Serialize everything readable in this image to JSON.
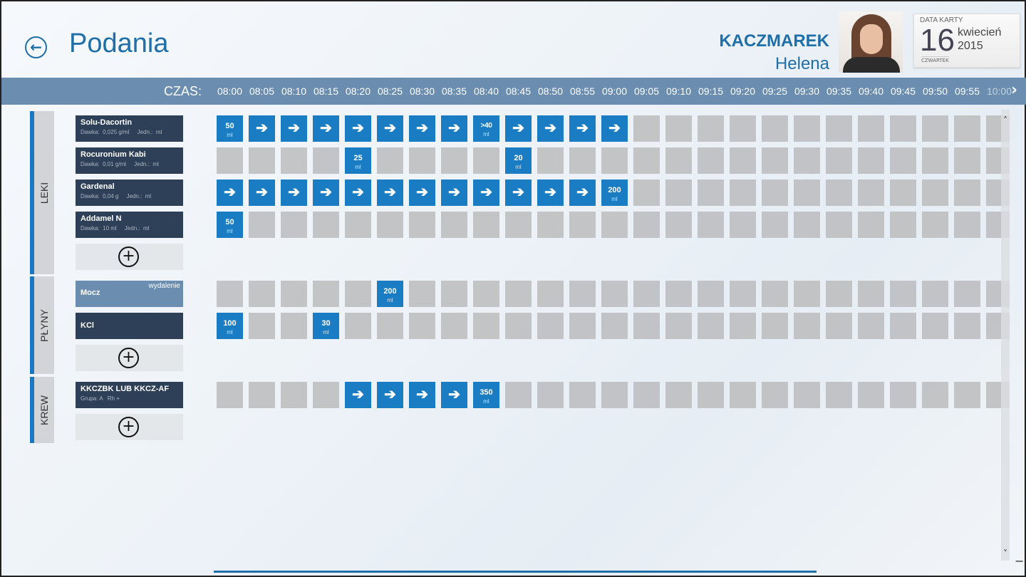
{
  "header": {
    "title": "Podania",
    "back_icon": "arrow-left-circle-icon"
  },
  "patient": {
    "surname": "KACZMAREK",
    "first_name": "Helena"
  },
  "date_card": {
    "label": "DATA KARTY",
    "day": "16",
    "month": "kwiecień",
    "year": "2015",
    "weekday": "CZWARTEK"
  },
  "timeline": {
    "label": "CZAS:",
    "times": [
      "08:00",
      "08:05",
      "08:10",
      "08:15",
      "08:20",
      "08:25",
      "08:30",
      "08:35",
      "08:40",
      "08:45",
      "08:50",
      "08:55",
      "09:00",
      "09:05",
      "09:10",
      "09:15",
      "09:20",
      "09:25",
      "09:30",
      "09:35",
      "09:40",
      "09:45",
      "09:50",
      "09:55",
      "10:00"
    ],
    "next_icon": "chevron-right-icon"
  },
  "colors": {
    "accent": "#1a7cc2",
    "header_bar": "#6a8db0",
    "item_dark": "#2e4057",
    "title": "#1f6fa8"
  },
  "unit": "ml",
  "sections": [
    {
      "label": "LEKI",
      "items": [
        {
          "name": "Solu-Dacortin",
          "details": "Dawka:  0,025 g/ml     Jedn.:  ml",
          "cells": {
            "0": "50",
            "1": ">",
            "2": ">",
            "3": ">",
            "4": ">",
            "5": ">",
            "6": ">",
            "7": ">",
            "8": ">40",
            "9": ">",
            "10": ">",
            "11": ">",
            "12": ">"
          }
        },
        {
          "name": "Rocuronium Kabi",
          "details": "Dawka:  0,01 g/ml     Jedn.:  ml",
          "cells": {
            "4": "25",
            "9": "20"
          }
        },
        {
          "name": "Gardenal",
          "details": "Dawka:  0,04 g     Jedn.:  ml",
          "cells": {
            "0": ">",
            "1": ">",
            "2": ">",
            "3": ">",
            "4": ">",
            "5": ">",
            "6": ">",
            "7": ">",
            "8": ">",
            "9": ">",
            "10": ">",
            "11": ">",
            "12": "200"
          }
        },
        {
          "name": "Addamel N",
          "details": "Dawka:  10 ml     Jedn.:  ml",
          "cells": {
            "0": "50"
          }
        }
      ]
    },
    {
      "label": "PŁYNY",
      "items": [
        {
          "name": "Mocz",
          "tag": "wydalenie",
          "light": true,
          "details": "",
          "cells": {
            "5": "200"
          }
        },
        {
          "name": "KCl",
          "details": "",
          "cells": {
            "0": "100",
            "3": "30"
          }
        }
      ]
    },
    {
      "label": "KREW",
      "items": [
        {
          "name": "KKCZBK LUB KKCZ-AF",
          "details": "Grupa: A   Rh +",
          "cells": {
            "4": ">",
            "5": ">",
            "6": ">",
            "7": ">",
            "8": "350"
          }
        }
      ]
    }
  ]
}
